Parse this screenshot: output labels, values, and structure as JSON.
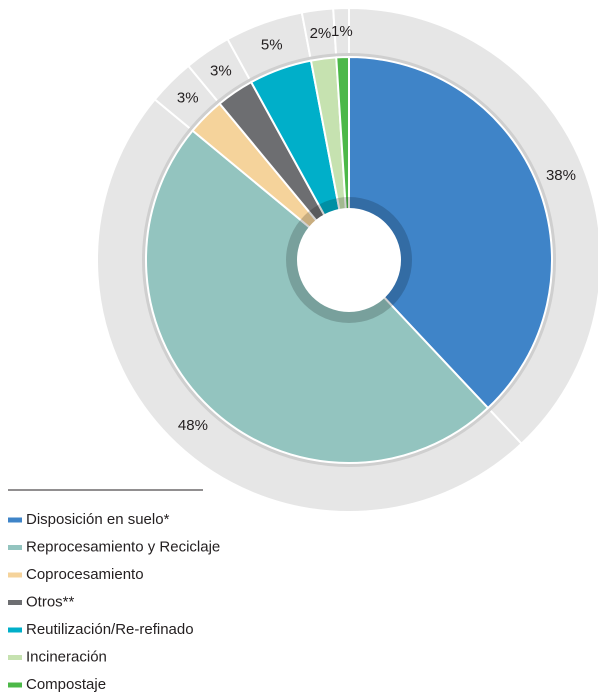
{
  "chart_data": {
    "type": "donut",
    "categories": [
      "Disposición en suelo*",
      "Reprocesamiento y Reciclaje",
      "Coprocesamiento",
      "Otros**",
      "Reutilización/Re-refinado",
      "Incineración",
      "Compostaje"
    ],
    "values": [
      38,
      48,
      3,
      3,
      5,
      2,
      1
    ],
    "value_labels": [
      "38%",
      "48%",
      "3%",
      "3%",
      "5%",
      "2%",
      "1%"
    ],
    "colors": [
      "#3f84c8",
      "#93c4bf",
      "#f5d39b",
      "#6d6e71",
      "#00afc9",
      "#c6e2b0",
      "#4cb848"
    ],
    "legend": "bottom-left"
  }
}
